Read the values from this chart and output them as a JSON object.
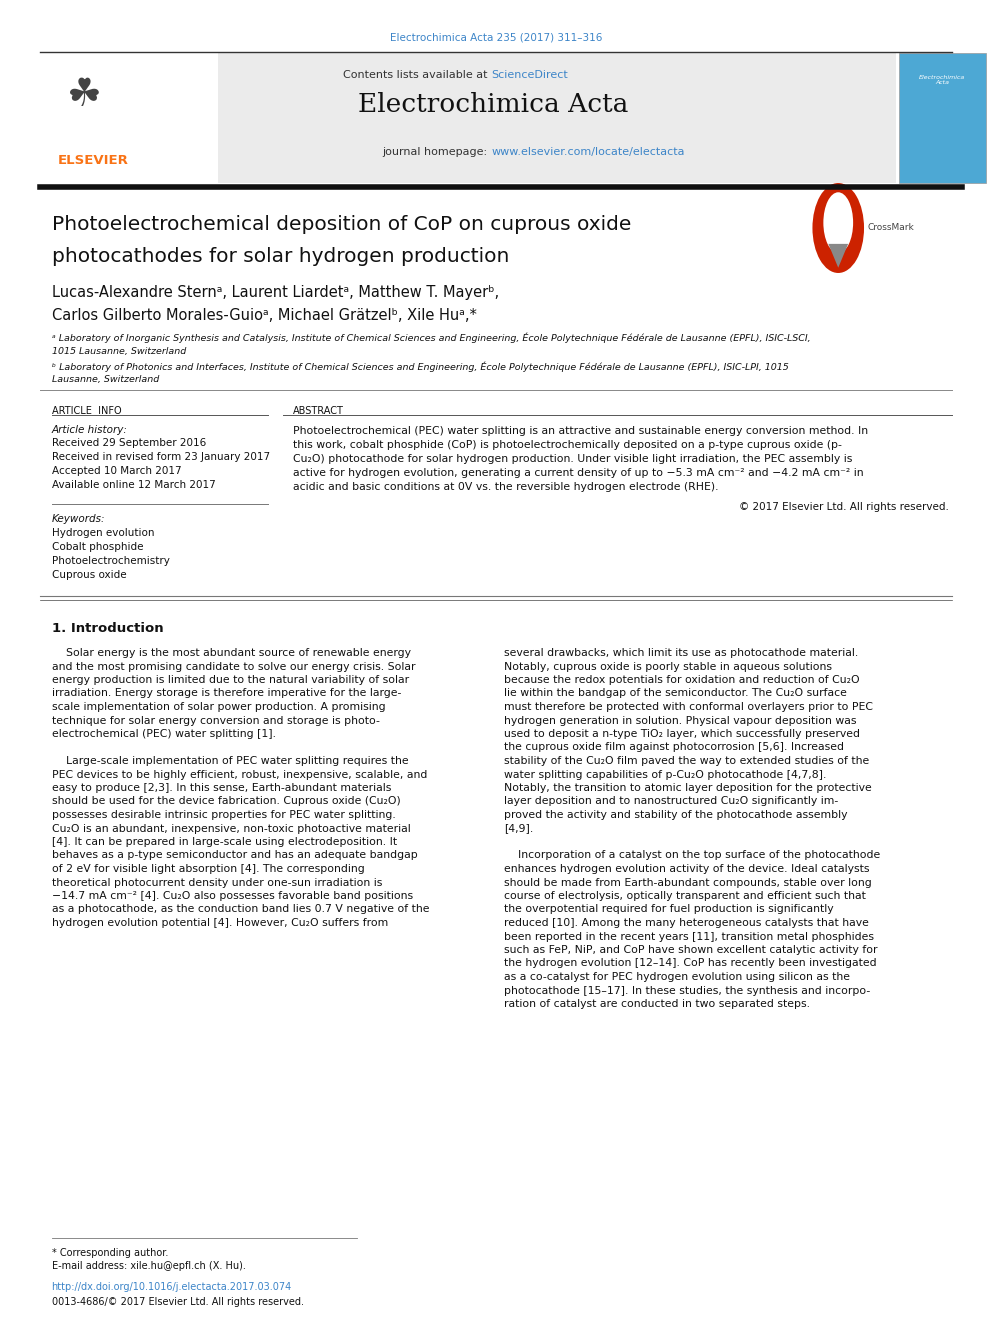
{
  "page_width": 9.92,
  "page_height": 13.23,
  "background_color": "#ffffff",
  "header_cite": "Electrochimica Acta 235 (2017) 311–316",
  "header_cite_color": "#3d85c8",
  "journal_header_bg": "#ebebeb",
  "journal_name": "Electrochimica Acta",
  "sciencedirect_color": "#3d85c8",
  "journal_url": "www.elsevier.com/locate/electacta",
  "journal_url_color": "#3d85c8",
  "elsevier_logo_color": "#f97316",
  "keywords": [
    "Hydrogen evolution",
    "Cobalt phosphide",
    "Photoelectrochemistry",
    "Cuprous oxide"
  ],
  "copyright_text": "© 2017 Elsevier Ltd. All rights reserved.",
  "footnote_star": "* Corresponding author.",
  "footnote_email": "E-mail address: xile.hu@epfl.ch (X. Hu).",
  "footnote_doi": "http://dx.doi.org/10.1016/j.electacta.2017.03.074",
  "footnote_issn": "0013-4686/© 2017 Elsevier Ltd. All rights reserved."
}
